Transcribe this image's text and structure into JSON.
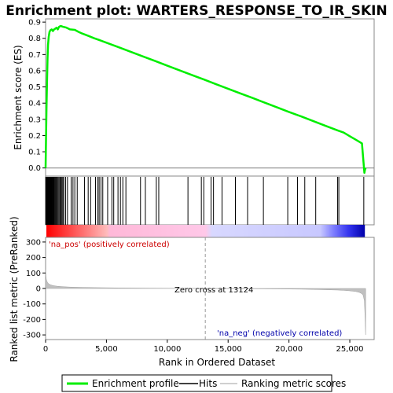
{
  "chart_data": {
    "type": "line",
    "title": "Enrichment plot: WARTERS_RESPONSE_TO_IR_SKIN",
    "xlabel": "Rank in Ordered Dataset",
    "x_ticks": [
      "0",
      "5,000",
      "10,000",
      "15,000",
      "20,000",
      "25,000"
    ],
    "xlim": [
      0,
      27000
    ],
    "total_genes": 26300,
    "panels": {
      "es": {
        "ylabel": "Enrichment score (ES)",
        "ylim": [
          -0.05,
          0.92
        ],
        "y_ticks": [
          "0.9",
          "0.8",
          "0.7",
          "0.6",
          "0.5",
          "0.4",
          "0.3",
          "0.2",
          "0.1",
          "0.0"
        ],
        "series": [
          {
            "name": "Enrichment profile",
            "color": "#00ee00",
            "x": [
              0,
              40,
              80,
              120,
              160,
              200,
              260,
              320,
              400,
              500,
              600,
              700,
              800,
              900,
              1000,
              1100,
              1200,
              1300,
              1400,
              1500,
              1700,
              2000,
              2400,
              2700,
              3000,
              3500,
              4000,
              4500,
              5000,
              6000,
              7000,
              8000,
              9000,
              10000,
              11000,
              12000,
              13000,
              14000,
              15000,
              16000,
              17000,
              18000,
              19000,
              20000,
              21000,
              22000,
              23000,
              24000,
              24500,
              25000,
              25500,
              26000,
              26200,
              26250,
              26300
            ],
            "y": [
              0.0,
              0.2,
              0.38,
              0.55,
              0.68,
              0.76,
              0.81,
              0.84,
              0.85,
              0.855,
              0.845,
              0.855,
              0.86,
              0.865,
              0.855,
              0.87,
              0.875,
              0.875,
              0.872,
              0.87,
              0.866,
              0.855,
              0.852,
              0.84,
              0.83,
              0.815,
              0.8,
              0.787,
              0.773,
              0.745,
              0.717,
              0.688,
              0.66,
              0.631,
              0.603,
              0.574,
              0.546,
              0.517,
              0.489,
              0.46,
              0.432,
              0.403,
              0.375,
              0.346,
              0.318,
              0.289,
              0.26,
              0.232,
              0.218,
              0.196,
              0.174,
              0.152,
              -0.03,
              -0.01,
              0.0
            ]
          }
        ]
      },
      "hits": {
        "positions": [
          10,
          40,
          70,
          100,
          130,
          160,
          190,
          220,
          250,
          280,
          310,
          340,
          370,
          400,
          430,
          460,
          490,
          520,
          560,
          600,
          650,
          700,
          760,
          820,
          880,
          950,
          1020,
          1100,
          1180,
          1260,
          1340,
          1420,
          1500,
          1650,
          1800,
          2100,
          2250,
          2400,
          2600,
          3200,
          3500,
          3700,
          4100,
          4300,
          4400,
          4550,
          4700,
          5100,
          5450,
          5600,
          5950,
          6150,
          6350,
          6600,
          7800,
          8200,
          9100,
          9300,
          11700,
          12800,
          13000,
          13600,
          13800,
          14500,
          15600,
          16600,
          17900,
          19900,
          20700,
          21300,
          22200,
          24000,
          24100,
          26150
        ]
      },
      "metric": {
        "ylabel": "Ranked list metric (PreRanked)",
        "ylim": [
          -330,
          330
        ],
        "y_ticks": [
          "300",
          "200",
          "100",
          "0",
          "-100",
          "-200",
          "-300"
        ],
        "x": [
          0,
          30,
          60,
          100,
          150,
          200,
          300,
          400,
          600,
          800,
          1000,
          1500,
          2000,
          3000,
          4000,
          5000,
          6000,
          8000,
          10000,
          13124,
          16000,
          19000,
          21000,
          22000,
          23000,
          24000,
          24500,
          25000,
          25500,
          25800,
          26000,
          26100,
          26200,
          26250,
          26300
        ],
        "values": [
          120,
          80,
          60,
          48,
          40,
          34,
          28,
          24,
          19,
          16,
          14,
          11,
          9,
          7,
          5.5,
          4.5,
          3.5,
          2.5,
          1.5,
          0,
          -1.5,
          -3,
          -4.5,
          -6,
          -8,
          -10,
          -12,
          -15,
          -20,
          -26,
          -34,
          -45,
          -80,
          -180,
          -300
        ],
        "colorbar_stops": [
          {
            "frac": 0.0,
            "color": "#ff0000"
          },
          {
            "frac": 0.19,
            "color": "#ffbbbb"
          },
          {
            "frac": 0.2,
            "color": "#ffb8d8"
          },
          {
            "frac": 0.5,
            "color": "#ffc8e8"
          },
          {
            "frac": 0.52,
            "color": "#d8d8ff"
          },
          {
            "frac": 0.86,
            "color": "#c8c8ff"
          },
          {
            "frac": 0.9,
            "color": "#8080ff"
          },
          {
            "frac": 0.95,
            "color": "#3333ee"
          },
          {
            "frac": 1.0,
            "color": "#0000aa"
          }
        ]
      }
    },
    "annotations": {
      "pos_label": "'na_pos' (positively correlated)",
      "neg_label": "'na_neg' (negatively correlated)",
      "zero_cross": "Zero cross at 13124",
      "zero_cross_x": 13124
    },
    "legend": {
      "placement": "bottom",
      "items": [
        {
          "label": "Enrichment profile",
          "color": "#00ee00"
        },
        {
          "label": "Hits",
          "color": "#000000"
        },
        {
          "label": "Ranking metric scores",
          "color": "#c0c0c0"
        }
      ]
    }
  }
}
